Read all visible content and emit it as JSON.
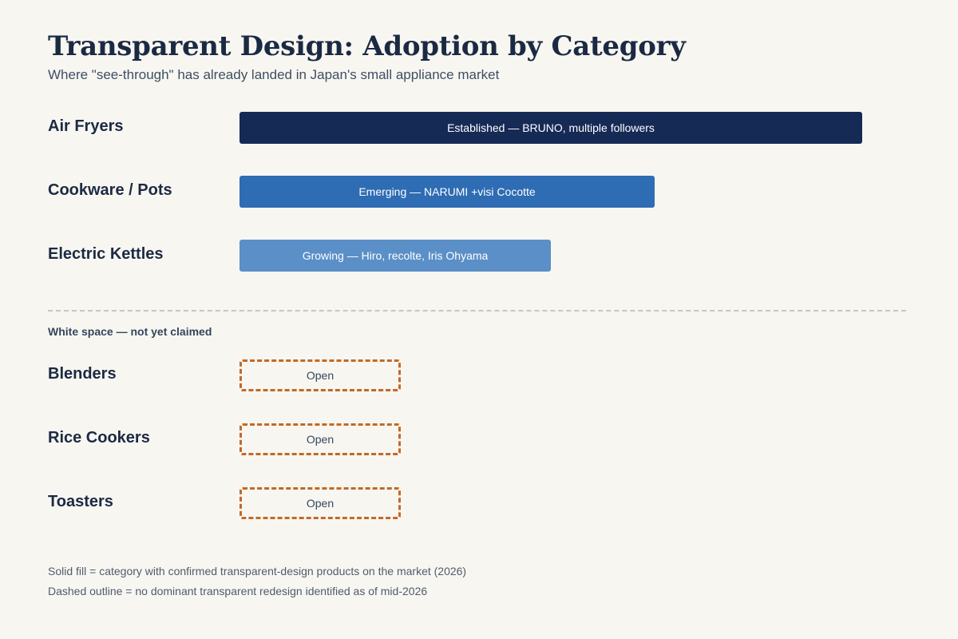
{
  "chart_data": {
    "type": "bar",
    "title": "Transparent Design: Adoption by Category",
    "subtitle": "Where \"see-through\" has already landed in Japan's small appliance market",
    "adopted": [
      {
        "category": "Air Fryers",
        "value": 3,
        "label": "Established — BRUNO, multiple followers",
        "color": "#162a56"
      },
      {
        "category": "Cookware / Pots",
        "value": 2,
        "label": "Emerging — NARUMI +visi Cocotte",
        "color": "#2e6cb3"
      },
      {
        "category": "Electric Kettles",
        "value": 1.5,
        "label": "Growing — Hiro, recolte, Iris Ohyama",
        "color": "#5b8fc7"
      }
    ],
    "white_space_label": "White space — not yet claimed",
    "open": [
      {
        "category": "Blenders",
        "label": "Open"
      },
      {
        "category": "Rice Cookers",
        "label": "Open"
      },
      {
        "category": "Toasters",
        "label": "Open"
      }
    ],
    "open_color": "#c06a28",
    "notes": [
      "Solid fill = category with confirmed transparent-design products on the market (2026)",
      "Dashed outline = no dominant transparent redesign identified as of mid-2026"
    ]
  }
}
